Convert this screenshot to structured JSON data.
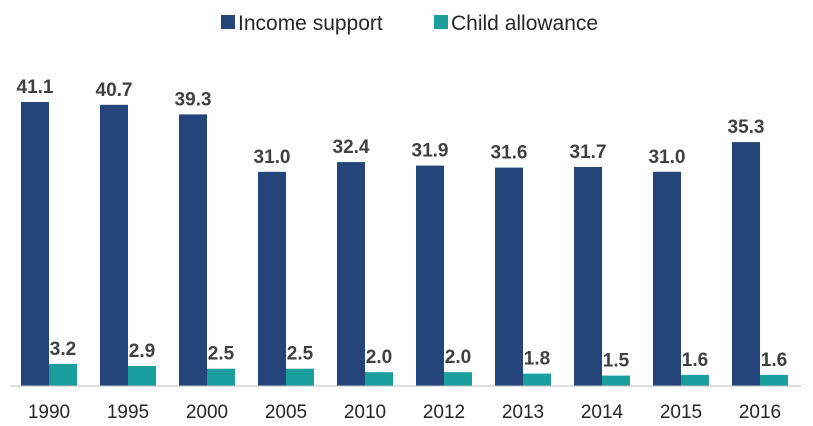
{
  "chart_data": {
    "type": "bar",
    "categories": [
      "1990",
      "1995",
      "2000",
      "2005",
      "2010",
      "2012",
      "2013",
      "2014",
      "2015",
      "2016"
    ],
    "series": [
      {
        "name": "Income support",
        "color": "#23457A",
        "values": [
          41.1,
          40.7,
          39.3,
          31.0,
          32.4,
          31.9,
          31.6,
          31.7,
          31.0,
          35.3
        ],
        "labels": [
          "41.1",
          "40.7",
          "39.3",
          "31.0",
          "32.4",
          "31.9",
          "31.6",
          "31.7",
          "31.0",
          "35.3"
        ]
      },
      {
        "name": "Child allowance",
        "color": "#1A9E9E",
        "values": [
          3.2,
          2.9,
          2.5,
          2.5,
          2.0,
          2.0,
          1.8,
          1.5,
          1.6,
          1.6
        ],
        "labels": [
          "3.2",
          "2.9",
          "2.5",
          "2.5",
          "2.0",
          "2.0",
          "1.8",
          "1.5",
          "1.6",
          "1.6"
        ]
      }
    ],
    "title": "",
    "xlabel": "",
    "ylabel": "",
    "ylim": [
      0,
      41.1
    ],
    "grid": false,
    "legend_position": "top-center",
    "axis_color": "#BFBFBF"
  }
}
